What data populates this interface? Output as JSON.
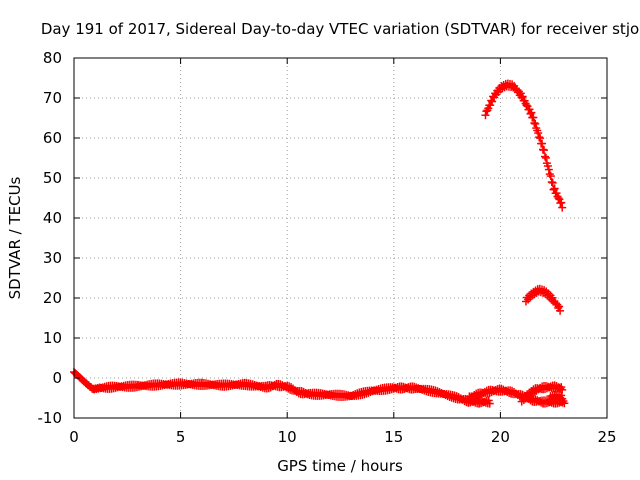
{
  "chart_data": {
    "type": "scatter",
    "title": "Day 191 of 2017, Sidereal Day-to-day VTEC variation (SDTVAR) for receiver stjo",
    "xlabel": "GPS time / hours",
    "ylabel": "SDTVAR / TECUs",
    "xlim": [
      0,
      25
    ],
    "ylim": [
      -10,
      80
    ],
    "xticks": [
      0,
      5,
      10,
      15,
      20,
      25
    ],
    "yticks": [
      -10,
      0,
      10,
      20,
      30,
      40,
      50,
      60,
      70,
      80
    ],
    "grid": true,
    "marker": "+",
    "color": "#ff0000",
    "series": [
      {
        "name": "trace-1",
        "x": [
          0,
          0.3,
          0.6,
          0.9,
          1.2,
          2,
          3,
          4,
          5,
          6,
          7,
          8,
          9,
          9.5,
          10,
          10.5,
          11,
          12,
          13,
          14,
          15,
          15.5,
          16,
          17,
          18,
          18.5,
          19,
          19.5
        ],
        "y": [
          1.5,
          0,
          -1.5,
          -2.8,
          -2.5,
          -2.2,
          -2,
          -1.7,
          -1.5,
          -1.6,
          -1.8,
          -1.6,
          -2.3,
          -1.8,
          -2.2,
          -3.5,
          -4,
          -4.2,
          -4.5,
          -3.2,
          -2.5,
          -2.5,
          -2.5,
          -3.5,
          -5,
          -5.8,
          -6,
          -6
        ]
      },
      {
        "name": "trace-2",
        "x": [
          18.5,
          19,
          19.5,
          20,
          20.5,
          21,
          21.5,
          22,
          22.5,
          23
        ],
        "y": [
          -5,
          -4,
          -3.3,
          -3,
          -3.5,
          -4.5,
          -5.5,
          -6,
          -6,
          -6
        ]
      },
      {
        "name": "trace-3",
        "x": [
          21,
          21.3,
          21.6,
          22,
          22.5,
          22.9
        ],
        "y": [
          -5.5,
          -4.3,
          -3,
          -2.4,
          -2.2,
          -2.6
        ]
      },
      {
        "name": "trace-4",
        "x": [
          22.3,
          22.6,
          22.9
        ],
        "y": [
          -5,
          -4.5,
          -4.8
        ]
      },
      {
        "name": "trace-5",
        "x": [
          19.3,
          19.7,
          20,
          20.3,
          20.6,
          21,
          21.5,
          22,
          22.5,
          22.9
        ],
        "y": [
          66,
          70.5,
          72.5,
          73.3,
          73,
          70.5,
          65.5,
          57.5,
          47.5,
          43
        ]
      },
      {
        "name": "trace-6",
        "x": [
          21.2,
          21.5,
          21.8,
          22.1,
          22.4,
          22.8
        ],
        "y": [
          19.5,
          21,
          22,
          21.5,
          20,
          17.2
        ]
      }
    ]
  }
}
